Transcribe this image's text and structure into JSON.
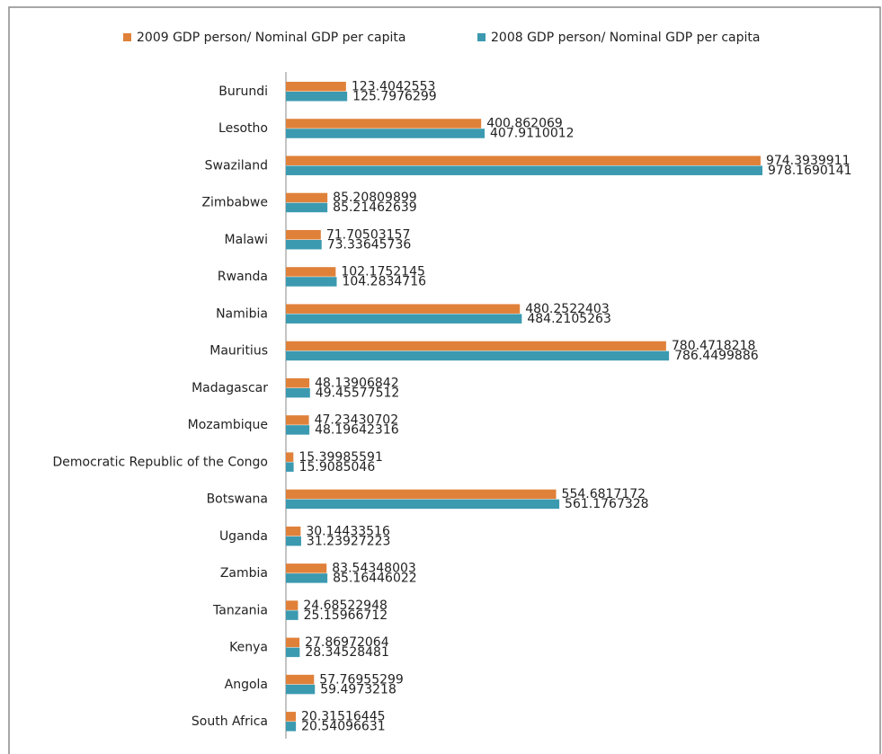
{
  "chart_data": {
    "type": "bar",
    "orientation": "horizontal",
    "categories": [
      "Burundi",
      "Lesotho",
      "Swaziland",
      "Zimbabwe",
      "Malawi",
      "Rwanda",
      "Namibia",
      "Mauritius",
      "Madagascar",
      "Mozambique",
      "Democratic Republic of the Congo",
      "Botswana",
      "Uganda",
      "Zambia",
      "Tanzania",
      "Kenya",
      "Angola",
      "South Africa"
    ],
    "series": [
      {
        "name": "2009 GDP person/ Nominal GDP per capita",
        "color": "#e0813a",
        "values": [
          123.4042553,
          400.862069,
          974.3939911,
          85.20809899,
          71.70503157,
          102.1752145,
          480.2522403,
          780.4718218,
          48.13906842,
          47.23430702,
          15.39985591,
          554.6817172,
          30.14433516,
          83.54348003,
          24.68522948,
          27.86972064,
          57.76955299,
          20.31516445
        ]
      },
      {
        "name": "2008 GDP person/ Nominal GDP per capita",
        "color": "#3b9ab0",
        "values": [
          125.7976299,
          407.9110012,
          978.1690141,
          85.21462639,
          73.33645736,
          104.2834716,
          484.2105263,
          786.4499886,
          49.45577512,
          48.19642316,
          15.9085046,
          561.1767328,
          31.23927223,
          85.16446022,
          25.15966712,
          28.34528481,
          59.4973218,
          20.54096631
        ]
      }
    ],
    "legend": "top"
  }
}
